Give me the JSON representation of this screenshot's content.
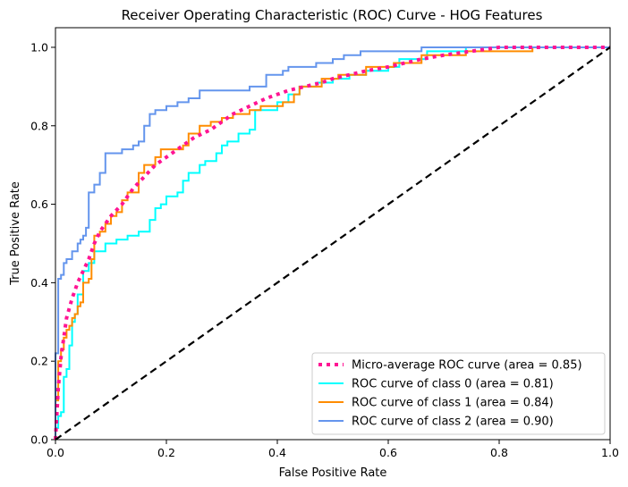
{
  "chart_data": {
    "type": "line",
    "title": "Receiver Operating Characteristic (ROC) Curve - HOG Features",
    "xlabel": "False Positive Rate",
    "ylabel": "True Positive Rate",
    "xlim": [
      0.0,
      1.0
    ],
    "ylim": [
      0.0,
      1.05
    ],
    "xticks": [
      0.0,
      0.2,
      0.4,
      0.6,
      0.8,
      1.0
    ],
    "yticks": [
      0.0,
      0.2,
      0.4,
      0.6,
      0.8,
      1.0
    ],
    "xtick_labels": [
      "0.0",
      "0.2",
      "0.4",
      "0.6",
      "0.8",
      "1.0"
    ],
    "ytick_labels": [
      "0.0",
      "0.2",
      "0.4",
      "0.6",
      "0.8",
      "1.0"
    ],
    "grid": false,
    "legend_position": "lower-right",
    "series": [
      {
        "name": "Micro-average ROC curve (area = 0.85)",
        "color": "#ff1493",
        "style": "dotted",
        "x": [
          0.0,
          0.005,
          0.01,
          0.015,
          0.02,
          0.03,
          0.04,
          0.05,
          0.06,
          0.07,
          0.08,
          0.09,
          0.1,
          0.12,
          0.14,
          0.16,
          0.18,
          0.2,
          0.22,
          0.25,
          0.28,
          0.3,
          0.32,
          0.35,
          0.38,
          0.4,
          0.42,
          0.45,
          0.48,
          0.5,
          0.53,
          0.56,
          0.6,
          0.63,
          0.66,
          0.7,
          0.75,
          0.8,
          0.9,
          1.0
        ],
        "y": [
          0.0,
          0.13,
          0.21,
          0.26,
          0.31,
          0.36,
          0.4,
          0.43,
          0.46,
          0.5,
          0.53,
          0.55,
          0.57,
          0.6,
          0.64,
          0.67,
          0.7,
          0.72,
          0.74,
          0.77,
          0.79,
          0.81,
          0.83,
          0.85,
          0.87,
          0.88,
          0.89,
          0.9,
          0.91,
          0.92,
          0.93,
          0.94,
          0.95,
          0.96,
          0.97,
          0.98,
          0.99,
          1.0,
          1.0,
          1.0
        ]
      },
      {
        "name": "ROC curve of class 0 (area = 0.81)",
        "color": "#00ffff",
        "style": "solid",
        "x": [
          0.0,
          0.0,
          0.005,
          0.005,
          0.01,
          0.01,
          0.015,
          0.015,
          0.02,
          0.02,
          0.025,
          0.025,
          0.03,
          0.03,
          0.035,
          0.035,
          0.04,
          0.04,
          0.05,
          0.05,
          0.06,
          0.06,
          0.07,
          0.07,
          0.09,
          0.09,
          0.11,
          0.11,
          0.13,
          0.13,
          0.15,
          0.15,
          0.17,
          0.17,
          0.18,
          0.18,
          0.19,
          0.19,
          0.2,
          0.2,
          0.22,
          0.22,
          0.23,
          0.23,
          0.24,
          0.24,
          0.26,
          0.26,
          0.27,
          0.27,
          0.29,
          0.29,
          0.3,
          0.3,
          0.31,
          0.31,
          0.33,
          0.33,
          0.35,
          0.35,
          0.36,
          0.36,
          0.4,
          0.4,
          0.42,
          0.42,
          0.44,
          0.44,
          0.47,
          0.47,
          0.5,
          0.5,
          0.53,
          0.53,
          0.56,
          0.56,
          0.6,
          0.6,
          0.62,
          0.62,
          0.67,
          0.67,
          0.74,
          0.74,
          1.0
        ],
        "y": [
          0.0,
          0.03,
          0.03,
          0.06,
          0.06,
          0.07,
          0.07,
          0.16,
          0.16,
          0.18,
          0.18,
          0.24,
          0.24,
          0.3,
          0.3,
          0.32,
          0.32,
          0.37,
          0.37,
          0.43,
          0.43,
          0.45,
          0.45,
          0.48,
          0.48,
          0.5,
          0.5,
          0.51,
          0.51,
          0.52,
          0.52,
          0.53,
          0.53,
          0.56,
          0.56,
          0.59,
          0.59,
          0.6,
          0.6,
          0.62,
          0.62,
          0.63,
          0.63,
          0.66,
          0.66,
          0.68,
          0.68,
          0.7,
          0.7,
          0.71,
          0.71,
          0.73,
          0.73,
          0.75,
          0.75,
          0.76,
          0.76,
          0.78,
          0.78,
          0.79,
          0.79,
          0.84,
          0.84,
          0.86,
          0.86,
          0.88,
          0.88,
          0.9,
          0.9,
          0.91,
          0.91,
          0.92,
          0.92,
          0.93,
          0.93,
          0.94,
          0.94,
          0.95,
          0.95,
          0.97,
          0.97,
          0.99,
          0.99,
          1.0,
          1.0
        ]
      },
      {
        "name": "ROC curve of class 1 (area = 0.84)",
        "color": "#ff8c00",
        "style": "solid",
        "x": [
          0.0,
          0.0,
          0.005,
          0.005,
          0.01,
          0.01,
          0.015,
          0.015,
          0.02,
          0.02,
          0.025,
          0.025,
          0.03,
          0.03,
          0.035,
          0.035,
          0.04,
          0.04,
          0.045,
          0.045,
          0.05,
          0.05,
          0.06,
          0.06,
          0.065,
          0.065,
          0.07,
          0.07,
          0.08,
          0.08,
          0.09,
          0.09,
          0.1,
          0.1,
          0.11,
          0.11,
          0.12,
          0.12,
          0.13,
          0.13,
          0.15,
          0.15,
          0.16,
          0.16,
          0.18,
          0.18,
          0.19,
          0.19,
          0.23,
          0.23,
          0.24,
          0.24,
          0.26,
          0.26,
          0.28,
          0.28,
          0.3,
          0.3,
          0.32,
          0.32,
          0.35,
          0.35,
          0.37,
          0.37,
          0.41,
          0.41,
          0.43,
          0.43,
          0.44,
          0.44,
          0.48,
          0.48,
          0.51,
          0.51,
          0.56,
          0.56,
          0.61,
          0.61,
          0.66,
          0.66,
          0.74,
          0.74,
          0.86,
          0.86,
          1.0
        ],
        "y": [
          0.0,
          0.1,
          0.1,
          0.2,
          0.2,
          0.23,
          0.23,
          0.26,
          0.26,
          0.28,
          0.28,
          0.29,
          0.29,
          0.31,
          0.31,
          0.32,
          0.32,
          0.34,
          0.34,
          0.35,
          0.35,
          0.4,
          0.4,
          0.41,
          0.41,
          0.46,
          0.46,
          0.52,
          0.52,
          0.53,
          0.53,
          0.55,
          0.55,
          0.57,
          0.57,
          0.58,
          0.58,
          0.61,
          0.61,
          0.63,
          0.63,
          0.68,
          0.68,
          0.7,
          0.7,
          0.72,
          0.72,
          0.74,
          0.74,
          0.75,
          0.75,
          0.78,
          0.78,
          0.8,
          0.8,
          0.81,
          0.81,
          0.82,
          0.82,
          0.83,
          0.83,
          0.84,
          0.84,
          0.85,
          0.85,
          0.86,
          0.86,
          0.88,
          0.88,
          0.9,
          0.9,
          0.92,
          0.92,
          0.93,
          0.93,
          0.95,
          0.95,
          0.96,
          0.96,
          0.98,
          0.98,
          0.99,
          0.99,
          1.0,
          1.0
        ]
      },
      {
        "name": "ROC curve of class 2 (area = 0.90)",
        "color": "#6495ed",
        "style": "solid",
        "x": [
          0.0,
          0.0,
          0.005,
          0.005,
          0.01,
          0.01,
          0.015,
          0.015,
          0.02,
          0.02,
          0.03,
          0.03,
          0.04,
          0.04,
          0.045,
          0.045,
          0.05,
          0.05,
          0.055,
          0.055,
          0.06,
          0.06,
          0.07,
          0.07,
          0.08,
          0.08,
          0.09,
          0.09,
          0.12,
          0.12,
          0.14,
          0.14,
          0.15,
          0.15,
          0.16,
          0.16,
          0.17,
          0.17,
          0.18,
          0.18,
          0.2,
          0.2,
          0.22,
          0.22,
          0.24,
          0.24,
          0.26,
          0.26,
          0.35,
          0.35,
          0.38,
          0.38,
          0.41,
          0.41,
          0.42,
          0.42,
          0.47,
          0.47,
          0.5,
          0.5,
          0.52,
          0.52,
          0.55,
          0.55,
          0.66,
          0.66,
          1.0
        ],
        "y": [
          0.0,
          0.22,
          0.22,
          0.41,
          0.41,
          0.42,
          0.42,
          0.45,
          0.45,
          0.46,
          0.46,
          0.48,
          0.48,
          0.5,
          0.5,
          0.51,
          0.51,
          0.52,
          0.52,
          0.54,
          0.54,
          0.63,
          0.63,
          0.65,
          0.65,
          0.68,
          0.68,
          0.73,
          0.73,
          0.74,
          0.74,
          0.75,
          0.75,
          0.76,
          0.76,
          0.8,
          0.8,
          0.83,
          0.83,
          0.84,
          0.84,
          0.85,
          0.85,
          0.86,
          0.86,
          0.87,
          0.87,
          0.89,
          0.89,
          0.9,
          0.9,
          0.93,
          0.93,
          0.94,
          0.94,
          0.95,
          0.95,
          0.96,
          0.96,
          0.97,
          0.97,
          0.98,
          0.98,
          0.99,
          0.99,
          1.0,
          1.0
        ]
      }
    ],
    "reference_line": {
      "x": [
        0.0,
        1.0
      ],
      "y": [
        0.0,
        1.0
      ],
      "color": "#000000",
      "style": "dashed"
    }
  }
}
